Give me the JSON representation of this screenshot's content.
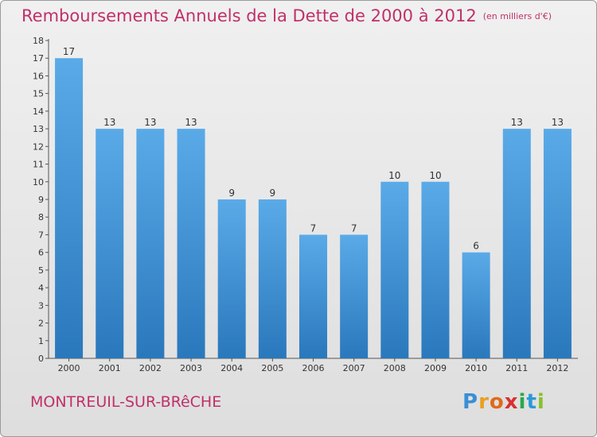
{
  "title": "Remboursements Annuels de la Dette de 2000 à 2012",
  "unit_note": "(en milliers d'€)",
  "commune": "MONTREUIL-SUR-BRêCHE",
  "brand": {
    "letters": [
      "P",
      "r",
      "o",
      "x",
      "i",
      "t",
      "i"
    ],
    "colors": [
      "#3a8fd6",
      "#e8a020",
      "#e06a1a",
      "#d93030",
      "#2aa84a",
      "#2a9ad6",
      "#8ac02a"
    ]
  },
  "colors": {
    "bar_light": "#5aaae8",
    "bar_dark": "#2a78bc",
    "accent": "#c0306a"
  },
  "chart_data": {
    "type": "bar",
    "categories": [
      "2000",
      "2001",
      "2002",
      "2003",
      "2004",
      "2005",
      "2006",
      "2007",
      "2008",
      "2009",
      "2010",
      "2011",
      "2012"
    ],
    "values": [
      17,
      13,
      13,
      13,
      9,
      9,
      7,
      7,
      10,
      10,
      6,
      13,
      13
    ],
    "ylim": [
      0,
      18
    ],
    "yticks": [
      "0",
      "1",
      "2",
      "3",
      "4",
      "5",
      "6",
      "7",
      "8",
      "9",
      "10",
      "11",
      "12",
      "13",
      "14",
      "15",
      "16",
      "17",
      "18"
    ],
    "grid": false
  }
}
